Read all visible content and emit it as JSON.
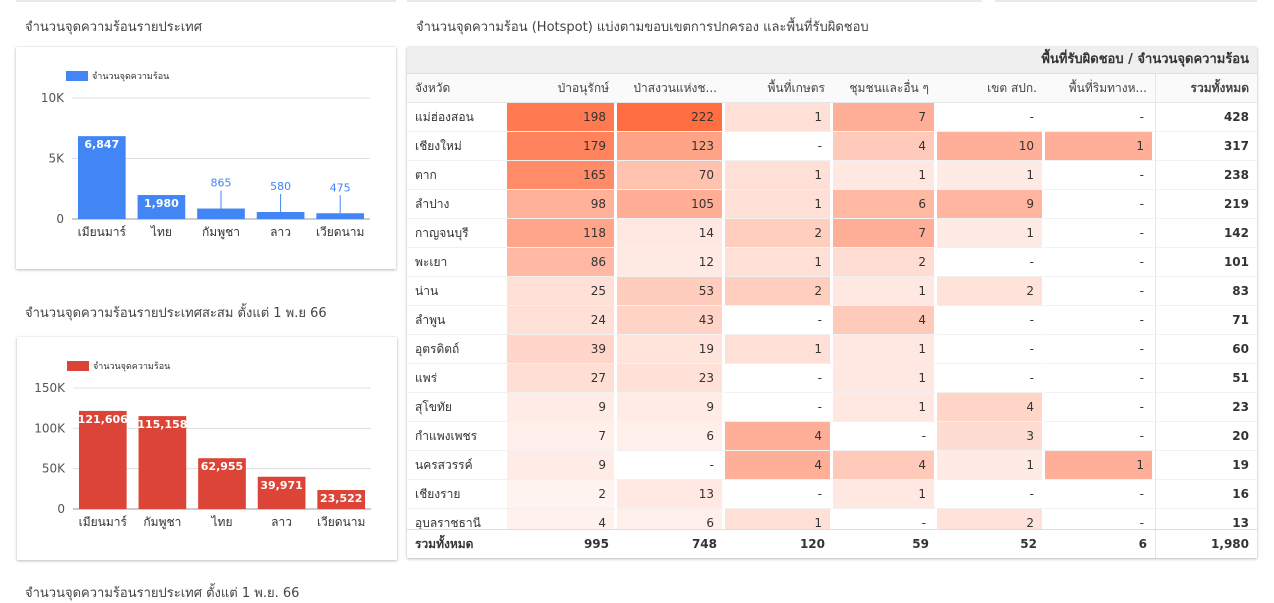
{
  "charts": {
    "chart1_title": "จำนวนจุดความร้อนรายประเทศ",
    "chart2_title": "จำนวนจุดความร้อนรายประเทศสะสม ตั้งแต่ 1 พ.ย 66",
    "table_title": "จำนวนจุดความร้อน (Hotspot) แบ่งตามขอบเขตการปกครอง และพื้นที่รับผิดชอบ",
    "bottom_title": "จำนวนจุดความร้อนรายประเทศ ตั้งแต่ 1 พ.ย. 66"
  },
  "colors": {
    "blue": "#4285f4",
    "red": "#db4437",
    "heat_max": "#ff6d40",
    "heat_min": "#fff5f2"
  },
  "chart_data": [
    {
      "type": "bar",
      "categories": [
        "เมียนมาร์",
        "ไทย",
        "กัมพูชา",
        "ลาว",
        "เวียดนาม"
      ],
      "series": [
        {
          "name": "จำนวนจุดความร้อน",
          "values": [
            6847,
            1980,
            865,
            580,
            475
          ]
        }
      ],
      "data_labels": [
        "6,847",
        "1,980",
        "865",
        "580",
        "475"
      ],
      "yticks": [
        "0",
        "5K",
        "10K"
      ],
      "ylim": [
        0,
        10000
      ],
      "grid": true,
      "legend": "top-left",
      "color": "#4285f4"
    },
    {
      "type": "bar",
      "categories": [
        "เมียนมาร์",
        "กัมพูชา",
        "ไทย",
        "ลาว",
        "เวียดนาม"
      ],
      "series": [
        {
          "name": "จำนวนจุดความร้อน",
          "values": [
            121606,
            115158,
            62955,
            39971,
            23522
          ]
        }
      ],
      "data_labels": [
        "121,606",
        "115,158",
        "62,955",
        "39,971",
        "23,522"
      ],
      "yticks": [
        "0",
        "50K",
        "100K",
        "150K"
      ],
      "ylim": [
        0,
        150000
      ],
      "grid": true,
      "legend": "top-left",
      "color": "#db4437"
    },
    {
      "type": "table",
      "group_header": "พื้นที่รับผิดชอบ / จำนวนจุดความร้อน",
      "columns": [
        "จังหวัด",
        "ป่าอนุรักษ์",
        "ป่าสงวนแห่งช...",
        "พื้นที่เกษตร",
        "ชุมชนและอื่น ๆ",
        "เขต สปก.",
        "พื้นที่ริมทางห...",
        "รวมทั้งหมด"
      ],
      "rows": [
        [
          "แม่ฮ่องสอน",
          "198",
          "222",
          "1",
          "7",
          "-",
          "-",
          "428"
        ],
        [
          "เชียงใหม่",
          "179",
          "123",
          "-",
          "4",
          "10",
          "1",
          "317"
        ],
        [
          "ตาก",
          "165",
          "70",
          "1",
          "1",
          "1",
          "-",
          "238"
        ],
        [
          "ลำปาง",
          "98",
          "105",
          "1",
          "6",
          "9",
          "-",
          "219"
        ],
        [
          "กาญจนบุรี",
          "118",
          "14",
          "2",
          "7",
          "1",
          "-",
          "142"
        ],
        [
          "พะเยา",
          "86",
          "12",
          "1",
          "2",
          "-",
          "-",
          "101"
        ],
        [
          "น่าน",
          "25",
          "53",
          "2",
          "1",
          "2",
          "-",
          "83"
        ],
        [
          "ลำพูน",
          "24",
          "43",
          "-",
          "4",
          "-",
          "-",
          "71"
        ],
        [
          "อุตรดิตถ์",
          "39",
          "19",
          "1",
          "1",
          "-",
          "-",
          "60"
        ],
        [
          "แพร่",
          "27",
          "23",
          "-",
          "1",
          "-",
          "-",
          "51"
        ],
        [
          "สุโขทัย",
          "9",
          "9",
          "-",
          "1",
          "4",
          "-",
          "23"
        ],
        [
          "กำแพงเพชร",
          "7",
          "6",
          "4",
          "-",
          "3",
          "-",
          "20"
        ],
        [
          "นครสวรรค์",
          "9",
          "-",
          "4",
          "4",
          "1",
          "1",
          "19"
        ],
        [
          "เชียงราย",
          "2",
          "13",
          "-",
          "1",
          "-",
          "-",
          "16"
        ],
        [
          "อุบลราชธานี",
          "4",
          "6",
          "1",
          "-",
          "2",
          "-",
          "13"
        ]
      ],
      "totals": [
        "รวมทั้งหมด",
        "995",
        "748",
        "120",
        "59",
        "52",
        "6",
        "1,980"
      ]
    }
  ]
}
